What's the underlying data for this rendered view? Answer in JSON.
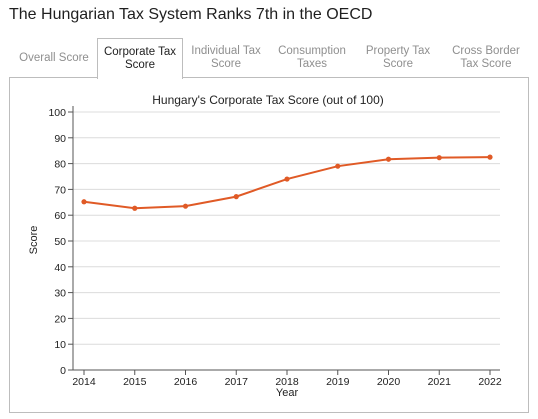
{
  "page": {
    "title": "The Hungarian Tax System Ranks 7th in the OECD"
  },
  "tabs": [
    {
      "label": "Overall Score",
      "active": false
    },
    {
      "label": "Corporate Tax\nScore",
      "active": true
    },
    {
      "label": "Individual Tax\nScore",
      "active": false
    },
    {
      "label": "Consumption\nTaxes",
      "active": false
    },
    {
      "label": "Property Tax\nScore",
      "active": false
    },
    {
      "label": "Cross Border\nTax Score",
      "active": false
    }
  ],
  "colors": {
    "line": "#e05a26",
    "grid": "#dcdcdc",
    "tab_active_border": "#bdbdbd"
  },
  "chart_data": {
    "type": "line",
    "title": "Hungary's Corporate Tax Score (out of 100)",
    "xlabel": "Year",
    "ylabel": "Score",
    "ylim": [
      0,
      100
    ],
    "yticks": [
      0,
      10,
      20,
      30,
      40,
      50,
      60,
      70,
      80,
      90,
      100
    ],
    "grid": true,
    "x": [
      "2014",
      "2015",
      "2016",
      "2017",
      "2018",
      "2019",
      "2020",
      "2021",
      "2022"
    ],
    "series": [
      {
        "values": [
          65.2,
          62.7,
          63.5,
          67.2,
          74.0,
          79.0,
          81.7,
          82.3,
          82.5
        ]
      }
    ]
  }
}
